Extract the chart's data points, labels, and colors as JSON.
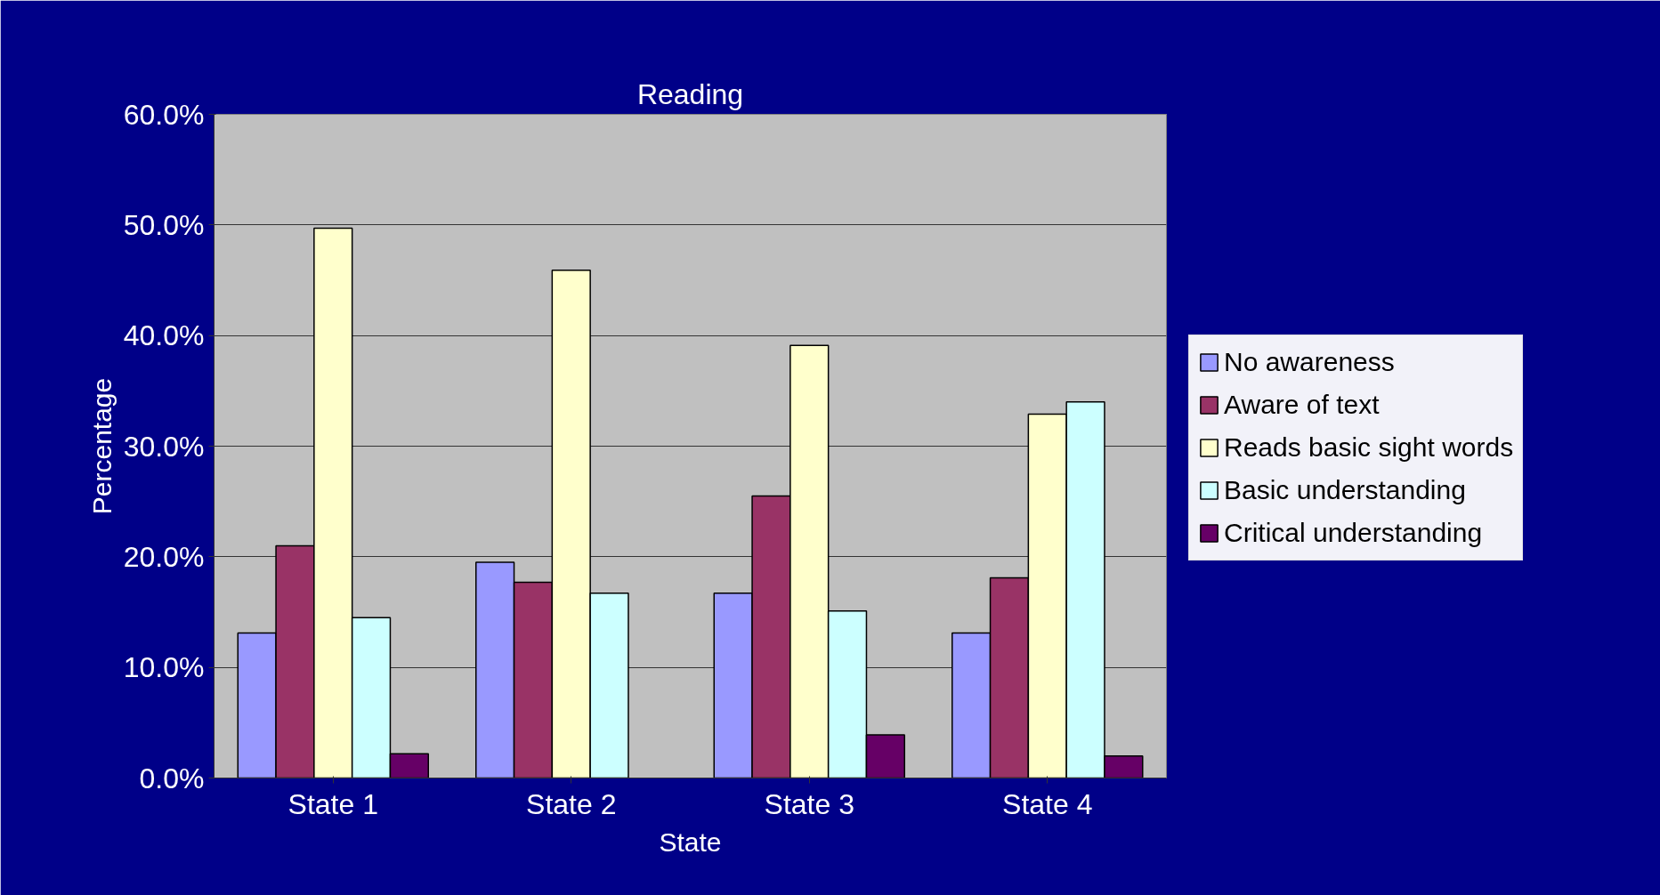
{
  "chart_data": {
    "type": "bar",
    "title": "Reading",
    "xlabel": "State",
    "ylabel": "Percentage",
    "categories": [
      "State 1",
      "State 2",
      "State 3",
      "State 4"
    ],
    "series": [
      {
        "name": "No awareness",
        "color": "#9999ff",
        "values": [
          13.1,
          19.5,
          16.7,
          13.1
        ]
      },
      {
        "name": "Aware of text",
        "color": "#993366",
        "values": [
          21.0,
          17.7,
          25.5,
          18.1
        ]
      },
      {
        "name": "Reads basic sight words",
        "color": "#ffffcc",
        "values": [
          49.7,
          45.9,
          39.1,
          32.9
        ]
      },
      {
        "name": "Basic understanding",
        "color": "#ccffff",
        "values": [
          14.5,
          16.7,
          15.1,
          34.0
        ]
      },
      {
        "name": "Critical understanding",
        "color": "#660066",
        "values": [
          2.2,
          null,
          3.9,
          2.0
        ]
      }
    ],
    "ylim": [
      0,
      60
    ],
    "yticks": [
      {
        "value": 0,
        "label": "0.0%"
      },
      {
        "value": 10,
        "label": "10.0%"
      },
      {
        "value": 20,
        "label": "20.0%"
      },
      {
        "value": 30,
        "label": "30.0%"
      },
      {
        "value": 40,
        "label": "40.0%"
      },
      {
        "value": 50,
        "label": "50.0%"
      },
      {
        "value": 60,
        "label": "60.0%"
      }
    ],
    "grid": "y",
    "legend": "right"
  }
}
